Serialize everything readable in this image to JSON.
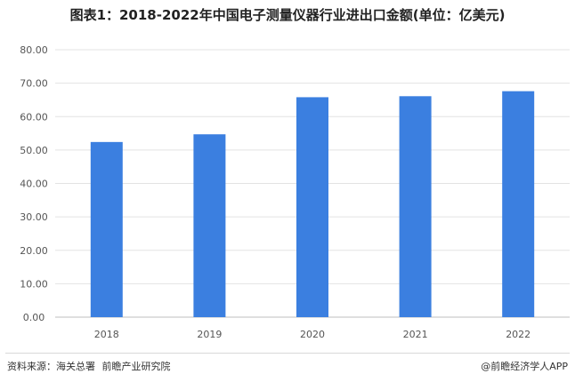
{
  "title": "图表1：2018-2022年中国电子测量仪器行业进出口金额(单位：亿美元)",
  "source": {
    "label": "资料来源：海关总署",
    "publisher": "前瞻产业研究院"
  },
  "brand": "@前瞻经济学人APP",
  "colors": {
    "bar": "#3b7fe0",
    "grid": "#e3e3e3",
    "axis": "#bfbfbf"
  },
  "chart_data": {
    "type": "bar",
    "categories": [
      "2018",
      "2019",
      "2020",
      "2021",
      "2022"
    ],
    "series": [
      {
        "values": [
          52.4,
          54.7,
          65.8,
          66.1,
          67.6
        ]
      }
    ],
    "ylim": [
      0,
      80
    ],
    "ystep": 10,
    "ytick_labels": [
      "0.00",
      "10.00",
      "20.00",
      "30.00",
      "40.00",
      "50.00",
      "60.00",
      "70.00",
      "80.00"
    ],
    "grid": true,
    "legend": "none",
    "xlabel": "",
    "ylabel": ""
  }
}
